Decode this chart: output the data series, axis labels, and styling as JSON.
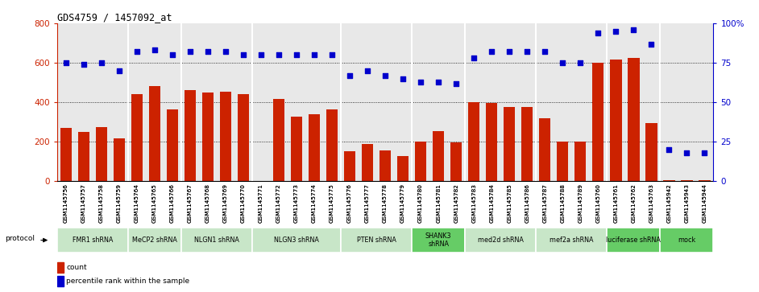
{
  "title": "GDS4759 / 1457092_at",
  "samples": [
    "GSM1145756",
    "GSM1145757",
    "GSM1145758",
    "GSM1145759",
    "GSM1145764",
    "GSM1145765",
    "GSM1145766",
    "GSM1145767",
    "GSM1145768",
    "GSM1145769",
    "GSM1145770",
    "GSM1145771",
    "GSM1145772",
    "GSM1145773",
    "GSM1145774",
    "GSM1145775",
    "GSM1145776",
    "GSM1145777",
    "GSM1145778",
    "GSM1145779",
    "GSM1145780",
    "GSM1145781",
    "GSM1145782",
    "GSM1145783",
    "GSM1145784",
    "GSM1145785",
    "GSM1145786",
    "GSM1145787",
    "GSM1145788",
    "GSM1145789",
    "GSM1145760",
    "GSM1145761",
    "GSM1145762",
    "GSM1145763",
    "GSM1145942",
    "GSM1145943",
    "GSM1145944"
  ],
  "counts": [
    270,
    250,
    275,
    215,
    440,
    480,
    365,
    460,
    450,
    455,
    440,
    0,
    415,
    325,
    340,
    365,
    150,
    190,
    155,
    125,
    200,
    255,
    195,
    400,
    395,
    375,
    375,
    320,
    200,
    200,
    600,
    615,
    625,
    295,
    5,
    5,
    5
  ],
  "percentiles": [
    75,
    74,
    75,
    70,
    82,
    83,
    80,
    82,
    82,
    82,
    80,
    80,
    80,
    80,
    80,
    80,
    67,
    70,
    67,
    65,
    63,
    63,
    62,
    78,
    82,
    82,
    82,
    82,
    75,
    75,
    94,
    95,
    96,
    87,
    20,
    18,
    18
  ],
  "groups": [
    {
      "label": "FMR1 shRNA",
      "start": 0,
      "end": 4,
      "color": "#c8e6c8"
    },
    {
      "label": "MeCP2 shRNA",
      "start": 4,
      "end": 7,
      "color": "#c8e6c8"
    },
    {
      "label": "NLGN1 shRNA",
      "start": 7,
      "end": 11,
      "color": "#c8e6c8"
    },
    {
      "label": "NLGN3 shRNA",
      "start": 11,
      "end": 16,
      "color": "#c8e6c8"
    },
    {
      "label": "PTEN shRNA",
      "start": 16,
      "end": 20,
      "color": "#c8e6c8"
    },
    {
      "label": "SHANK3\nshRNA",
      "start": 20,
      "end": 23,
      "color": "#66cc66"
    },
    {
      "label": "med2d shRNA",
      "start": 23,
      "end": 27,
      "color": "#c8e6c8"
    },
    {
      "label": "mef2a shRNA",
      "start": 27,
      "end": 31,
      "color": "#c8e6c8"
    },
    {
      "label": "luciferase shRNA",
      "start": 31,
      "end": 34,
      "color": "#66cc66"
    },
    {
      "label": "mock",
      "start": 34,
      "end": 37,
      "color": "#66cc66"
    }
  ],
  "bar_color": "#cc2200",
  "dot_color": "#0000cc",
  "ylim_left": [
    0,
    800
  ],
  "ylim_right": [
    0,
    100
  ],
  "yticks_left": [
    0,
    200,
    400,
    600,
    800
  ],
  "yticks_right": [
    0,
    25,
    50,
    75,
    100
  ],
  "plot_bg_color": "#e8e8e8",
  "xtick_bg_color": "#d4d4d4",
  "fig_bg_color": "#ffffff"
}
